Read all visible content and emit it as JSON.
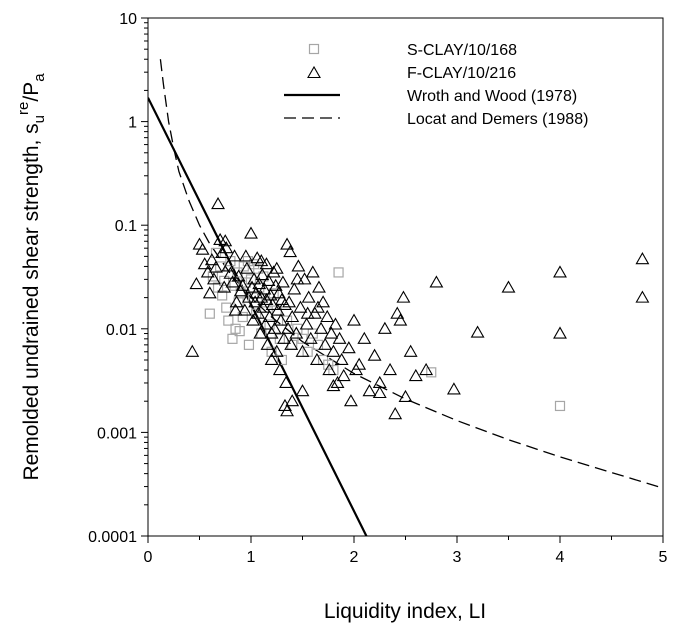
{
  "chart_data": {
    "type": "scatter",
    "title": "",
    "xlabel": "Liquidity index, LI",
    "ylabel": {
      "main": "Remolded undrained shear strength, s",
      "sub": "u",
      "sup": "re",
      "tail": "/P",
      "tail_sub": "a"
    },
    "xlim": [
      0,
      5
    ],
    "ylim": [
      0.0001,
      10
    ],
    "yscale": "log",
    "grid": false,
    "legend_position": "top-right",
    "x_ticks": [
      "0",
      "1",
      "2",
      "3",
      "4",
      "5"
    ],
    "y_ticks": [
      "0.0001",
      "0.001",
      "0.01",
      "0.1",
      "1",
      "10"
    ],
    "series": [
      {
        "name": "S-CLAY/10/168",
        "kind": "markers",
        "marker": "square",
        "color": "#a6a6a6",
        "points": [
          [
            0.6,
            0.014
          ],
          [
            0.63,
            0.032
          ],
          [
            0.66,
            0.054
          ],
          [
            0.68,
            0.025
          ],
          [
            0.7,
            0.04
          ],
          [
            0.72,
            0.021
          ],
          [
            0.74,
            0.029
          ],
          [
            0.76,
            0.016
          ],
          [
            0.78,
            0.012
          ],
          [
            0.8,
            0.045
          ],
          [
            0.82,
            0.008
          ],
          [
            0.84,
            0.026
          ],
          [
            0.85,
            0.01
          ],
          [
            0.87,
            0.035
          ],
          [
            0.88,
            0.018
          ],
          [
            0.9,
            0.022
          ],
          [
            0.92,
            0.013
          ],
          [
            0.93,
            0.04
          ],
          [
            0.95,
            0.028
          ],
          [
            0.97,
            0.045
          ],
          [
            1.0,
            0.03
          ],
          [
            1.02,
            0.02
          ],
          [
            1.05,
            0.014
          ],
          [
            1.08,
            0.025
          ],
          [
            1.1,
            0.009
          ],
          [
            1.12,
            0.032
          ],
          [
            1.15,
            0.018
          ],
          [
            1.18,
            0.011
          ],
          [
            1.2,
            0.006
          ],
          [
            1.22,
            0.022
          ],
          [
            1.25,
            0.015
          ],
          [
            1.28,
            0.008
          ],
          [
            1.3,
            0.005
          ],
          [
            1.35,
            0.012
          ],
          [
            1.4,
            0.007
          ],
          [
            1.45,
            0.01
          ],
          [
            1.5,
            0.008
          ],
          [
            1.55,
            0.006
          ],
          [
            1.6,
            0.009
          ],
          [
            1.65,
            0.007
          ],
          [
            1.7,
            0.005
          ],
          [
            1.75,
            0.0045
          ],
          [
            1.8,
            0.004
          ],
          [
            1.85,
            0.035
          ],
          [
            0.98,
            0.007
          ],
          [
            1.03,
            0.042
          ],
          [
            1.07,
            0.038
          ],
          [
            0.89,
            0.0095
          ],
          [
            4.0,
            0.0018
          ],
          [
            2.75,
            0.0038
          ]
        ]
      },
      {
        "name": "F-CLAY/10/216",
        "kind": "markers",
        "marker": "triangle",
        "color": "#000000",
        "points": [
          [
            0.43,
            0.006
          ],
          [
            0.47,
            0.027
          ],
          [
            0.5,
            0.065
          ],
          [
            0.53,
            0.058
          ],
          [
            0.55,
            0.042
          ],
          [
            0.58,
            0.035
          ],
          [
            0.6,
            0.022
          ],
          [
            0.62,
            0.046
          ],
          [
            0.64,
            0.03
          ],
          [
            0.66,
            0.039
          ],
          [
            0.68,
            0.16
          ],
          [
            0.7,
            0.072
          ],
          [
            0.72,
            0.054
          ],
          [
            0.74,
            0.025
          ],
          [
            0.76,
            0.06
          ],
          [
            0.78,
            0.04
          ],
          [
            0.8,
            0.034
          ],
          [
            0.82,
            0.028
          ],
          [
            0.84,
            0.05
          ],
          [
            0.86,
            0.018
          ],
          [
            0.88,
            0.032
          ],
          [
            0.9,
            0.023
          ],
          [
            0.92,
            0.026
          ],
          [
            0.94,
            0.015
          ],
          [
            0.96,
            0.038
          ],
          [
            0.98,
            0.02
          ],
          [
            1.0,
            0.083
          ],
          [
            1.01,
            0.025
          ],
          [
            1.02,
            0.012
          ],
          [
            1.03,
            0.03
          ],
          [
            1.04,
            0.018
          ],
          [
            1.05,
            0.022
          ],
          [
            1.06,
            0.048
          ],
          [
            1.07,
            0.014
          ],
          [
            1.08,
            0.027
          ],
          [
            1.09,
            0.009
          ],
          [
            1.1,
            0.02
          ],
          [
            1.11,
            0.033
          ],
          [
            1.12,
            0.016
          ],
          [
            1.13,
            0.024
          ],
          [
            1.14,
            0.011
          ],
          [
            1.15,
            0.019
          ],
          [
            1.16,
            0.007
          ],
          [
            1.17,
            0.029
          ],
          [
            1.18,
            0.013
          ],
          [
            1.19,
            0.021
          ],
          [
            1.2,
            0.005
          ],
          [
            1.21,
            0.017
          ],
          [
            1.22,
            0.035
          ],
          [
            1.23,
            0.01
          ],
          [
            1.24,
            0.026
          ],
          [
            1.25,
            0.006
          ],
          [
            1.26,
            0.015
          ],
          [
            1.27,
            0.022
          ],
          [
            1.28,
            0.004
          ],
          [
            1.29,
            0.012
          ],
          [
            1.3,
            0.019
          ],
          [
            1.31,
            0.028
          ],
          [
            1.32,
            0.008
          ],
          [
            1.33,
            0.017
          ],
          [
            1.34,
            0.003
          ],
          [
            1.35,
            0.065
          ],
          [
            1.36,
            0.01
          ],
          [
            1.37,
            0.018
          ],
          [
            1.38,
            0.055
          ],
          [
            1.39,
            0.007
          ],
          [
            1.4,
            0.013
          ],
          [
            1.42,
            0.024
          ],
          [
            1.44,
            0.009
          ],
          [
            1.46,
            0.04
          ],
          [
            1.48,
            0.016
          ],
          [
            1.5,
            0.006
          ],
          [
            1.52,
            0.03
          ],
          [
            1.54,
            0.011
          ],
          [
            1.56,
            0.02
          ],
          [
            1.58,
            0.008
          ],
          [
            1.6,
            0.035
          ],
          [
            1.62,
            0.014
          ],
          [
            1.64,
            0.005
          ],
          [
            1.66,
            0.025
          ],
          [
            1.68,
            0.01
          ],
          [
            1.7,
            0.018
          ],
          [
            1.72,
            0.007
          ],
          [
            1.74,
            0.013
          ],
          [
            1.76,
            0.004
          ],
          [
            1.78,
            0.009
          ],
          [
            1.8,
            0.006
          ],
          [
            1.82,
            0.011
          ],
          [
            1.84,
            0.003
          ],
          [
            1.86,
            0.008
          ],
          [
            1.88,
            0.005
          ],
          [
            1.9,
            0.0035
          ],
          [
            1.95,
            0.0065
          ],
          [
            2.0,
            0.012
          ],
          [
            2.05,
            0.0045
          ],
          [
            2.1,
            0.008
          ],
          [
            2.15,
            0.0025
          ],
          [
            2.2,
            0.0055
          ],
          [
            2.25,
            0.003
          ],
          [
            2.3,
            0.01
          ],
          [
            2.35,
            0.004
          ],
          [
            2.4,
            0.0015
          ],
          [
            2.42,
            0.014
          ],
          [
            2.45,
            0.012
          ],
          [
            2.48,
            0.02
          ],
          [
            2.5,
            0.0022
          ],
          [
            2.55,
            0.006
          ],
          [
            2.6,
            0.0035
          ],
          [
            2.7,
            0.004
          ],
          [
            2.8,
            0.028
          ],
          [
            2.97,
            0.0026
          ],
          [
            3.2,
            0.0092
          ],
          [
            3.5,
            0.025
          ],
          [
            4.0,
            0.035
          ],
          [
            4.0,
            0.009
          ],
          [
            4.8,
            0.047
          ],
          [
            4.8,
            0.02
          ],
          [
            1.35,
            0.0016
          ],
          [
            1.33,
            0.0018
          ],
          [
            1.5,
            0.0025
          ],
          [
            1.8,
            0.0028
          ],
          [
            1.4,
            0.002
          ],
          [
            0.95,
            0.05
          ],
          [
            1.15,
            0.042
          ],
          [
            1.25,
            0.038
          ],
          [
            0.75,
            0.07
          ],
          [
            1.45,
            0.03
          ],
          [
            1.55,
            0.014
          ],
          [
            1.65,
            0.016
          ],
          [
            2.02,
            0.004
          ],
          [
            1.97,
            0.002
          ],
          [
            2.25,
            0.0024
          ],
          [
            0.85,
            0.015
          ],
          [
            1.1,
            0.045
          ],
          [
            1.2,
            0.009
          ]
        ]
      },
      {
        "name": "Wroth and Wood (1978)",
        "kind": "line",
        "dash": "solid",
        "color": "#000000",
        "points": [
          [
            0.0,
            1.7
          ],
          [
            2.12,
            0.0001
          ]
        ]
      },
      {
        "name": "Locat and Demers (1988)",
        "kind": "line",
        "dash": "dashed",
        "color": "#000000",
        "points": [
          [
            0.12,
            4.0
          ],
          [
            0.15,
            2.3
          ],
          [
            0.2,
            1.0
          ],
          [
            0.25,
            0.55
          ],
          [
            0.3,
            0.33
          ],
          [
            0.4,
            0.17
          ],
          [
            0.5,
            0.1
          ],
          [
            0.6,
            0.066
          ],
          [
            0.8,
            0.034
          ],
          [
            1.0,
            0.02
          ],
          [
            1.2,
            0.013
          ],
          [
            1.5,
            0.0075
          ],
          [
            2.0,
            0.0037
          ],
          [
            2.5,
            0.0021
          ],
          [
            3.0,
            0.0013
          ],
          [
            3.5,
            0.00085
          ],
          [
            4.0,
            0.00058
          ],
          [
            4.5,
            0.00041
          ],
          [
            5.0,
            0.00029
          ]
        ]
      }
    ]
  }
}
